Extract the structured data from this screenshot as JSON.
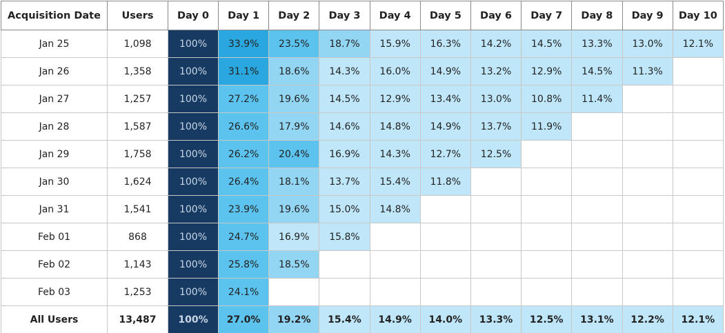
{
  "table": {
    "header": [
      "Acquisition Date",
      "Users",
      "Day 0",
      "Day 1",
      "Day 2",
      "Day 3",
      "Day 4",
      "Day 5",
      "Day 6",
      "Day 7",
      "Day 8",
      "Day 9",
      "Day 10"
    ],
    "rows": [
      [
        "Jan 25",
        "1,098",
        "100%",
        "33.9%",
        "23.5%",
        "18.7%",
        "15.9%",
        "16.3%",
        "14.2%",
        "14.5%",
        "13.3%",
        "13.0%",
        "12.1%"
      ],
      [
        "Jan 26",
        "1,358",
        "100%",
        "31.1%",
        "18.6%",
        "14.3%",
        "16.0%",
        "14.9%",
        "13.2%",
        "12.9%",
        "14.5%",
        "11.3%"
      ],
      [
        "Jan 27",
        "1,257",
        "100%",
        "27.2%",
        "19.6%",
        "14.5%",
        "12.9%",
        "13.4%",
        "13.0%",
        "10.8%",
        "11.4%"
      ],
      [
        "Jan 28",
        "1,587",
        "100%",
        "26.6%",
        "17.9%",
        "14.6%",
        "14.8%",
        "14.9%",
        "13.7%",
        "11.9%"
      ],
      [
        "Jan 29",
        "1,758",
        "100%",
        "26.2%",
        "20.4%",
        "16.9%",
        "14.3%",
        "12.7%",
        "12.5%"
      ],
      [
        "Jan 30",
        "1,624",
        "100%",
        "26.4%",
        "18.1%",
        "13.7%",
        "15.4%",
        "11.8%"
      ],
      [
        "Jan 31",
        "1,541",
        "100%",
        "23.9%",
        "19.6%",
        "15.0%",
        "14.8%"
      ],
      [
        "Feb 01",
        "868",
        "100%",
        "24.7%",
        "16.9%",
        "15.8%"
      ],
      [
        "Feb 02",
        "1,143",
        "100%",
        "25.8%",
        "18.5%"
      ],
      [
        "Feb 03",
        "1,253",
        "100%",
        "24.1%"
      ]
    ],
    "footer": [
      "All Users",
      "13,487",
      "100%",
      "27.0%",
      "19.2%",
      "15.4%",
      "14.9%",
      "14.0%",
      "13.3%",
      "12.5%",
      "13.1%",
      "12.2%",
      "12.1%"
    ]
  }
}
